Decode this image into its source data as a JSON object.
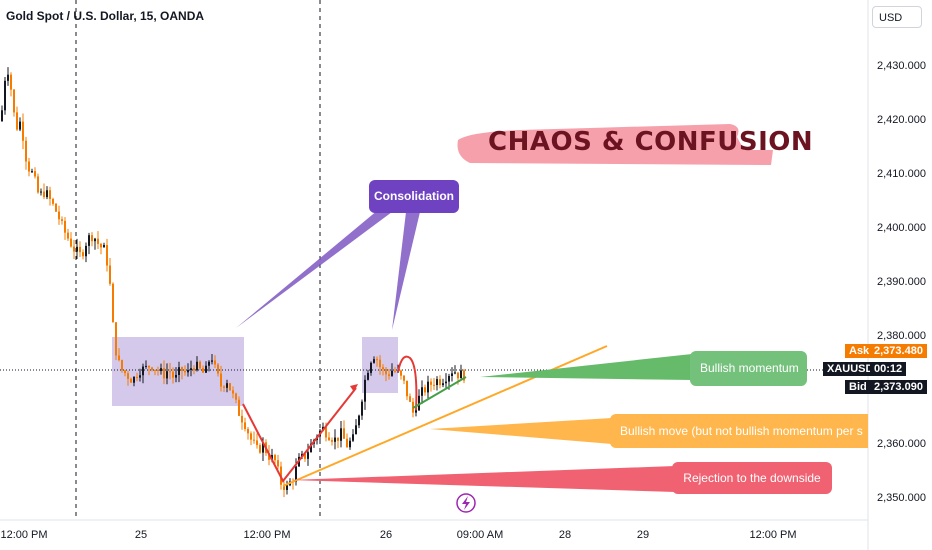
{
  "header": {
    "title": "Gold Spot / U.S. Dollar, 15, OANDA",
    "currency_button": "USD"
  },
  "price_scale": {
    "ticks": [
      "2,430.000",
      "2,420.000",
      "2,410.000",
      "2,400.000",
      "2,390.000",
      "2,380.000",
      "2,360.000",
      "2,350.000"
    ],
    "ask_label": "Ask",
    "ask_value": "2,373.480",
    "symbol_label": "XAUUSD",
    "countdown": "00:12",
    "bid_label": "Bid",
    "bid_value": "2,373.090",
    "colors": {
      "ask": "#f57c00",
      "bid": "#131722",
      "symbol": "#131722"
    }
  },
  "time_axis": {
    "ticks": [
      "12:00 PM",
      "25",
      "12:00 PM",
      "26",
      "09:00 AM",
      "28",
      "29",
      "12:00 PM"
    ]
  },
  "annotations": {
    "chaos_text": "CHAOS & CONFUSION",
    "consolidation": "Consolidation",
    "bullish_momentum": "Bullish momentum",
    "bullish_move": "Bullish move (but not bullish momentum per s",
    "rejection": "Rejection to the downside",
    "colors": {
      "consolidation": "#6f42c1",
      "momentum": "#66bb6a",
      "move": "#ffb74d",
      "rejection": "#f06272",
      "chaos_highlight": "#f48f9c"
    }
  },
  "chart_data": {
    "type": "candlestick",
    "symbol": "XAUUSD",
    "interval": "15",
    "ylim": [
      2346,
      2437
    ],
    "close_path": [
      [
        0,
        2420
      ],
      [
        4,
        2428
      ],
      [
        8,
        2430
      ],
      [
        12,
        2422
      ],
      [
        16,
        2419
      ],
      [
        20,
        2420
      ],
      [
        26,
        2412
      ],
      [
        32,
        2410
      ],
      [
        38,
        2406
      ],
      [
        44,
        2407
      ],
      [
        50,
        2405
      ],
      [
        56,
        2403
      ],
      [
        62,
        2400
      ],
      [
        68,
        2398
      ],
      [
        74,
        2396
      ],
      [
        80,
        2395
      ],
      [
        86,
        2398
      ],
      [
        92,
        2399
      ],
      [
        98,
        2397
      ],
      [
        104,
        2396
      ],
      [
        108,
        2392
      ],
      [
        112,
        2382
      ],
      [
        116,
        2376
      ],
      [
        120,
        2374
      ],
      [
        126,
        2373
      ],
      [
        132,
        2372
      ],
      [
        138,
        2374
      ],
      [
        144,
        2374
      ],
      [
        150,
        2375
      ],
      [
        156,
        2374
      ],
      [
        162,
        2373
      ],
      [
        168,
        2374
      ],
      [
        174,
        2372
      ],
      [
        180,
        2374
      ],
      [
        186,
        2373
      ],
      [
        192,
        2375
      ],
      [
        198,
        2374
      ],
      [
        204,
        2373
      ],
      [
        210,
        2377
      ],
      [
        214,
        2374
      ],
      [
        220,
        2371
      ],
      [
        226,
        2372
      ],
      [
        232,
        2369
      ],
      [
        238,
        2366
      ],
      [
        244,
        2364
      ],
      [
        250,
        2361
      ],
      [
        256,
        2359
      ],
      [
        262,
        2360
      ],
      [
        268,
        2358
      ],
      [
        274,
        2357
      ],
      [
        280,
        2353
      ],
      [
        286,
        2352
      ],
      [
        292,
        2354
      ],
      [
        298,
        2357
      ],
      [
        304,
        2358
      ],
      [
        310,
        2360
      ],
      [
        316,
        2362
      ],
      [
        322,
        2363
      ],
      [
        328,
        2362
      ],
      [
        334,
        2361
      ],
      [
        340,
        2362
      ],
      [
        346,
        2360
      ],
      [
        352,
        2361
      ],
      [
        356,
        2364
      ],
      [
        360,
        2368
      ],
      [
        364,
        2372
      ],
      [
        368,
        2375
      ],
      [
        372,
        2377
      ],
      [
        376,
        2376
      ],
      [
        380,
        2374
      ],
      [
        386,
        2373
      ],
      [
        392,
        2374
      ],
      [
        398,
        2373
      ],
      [
        404,
        2371
      ],
      [
        408,
        2368
      ],
      [
        412,
        2366
      ],
      [
        416,
        2368
      ],
      [
        422,
        2370
      ],
      [
        428,
        2371
      ],
      [
        434,
        2372
      ],
      [
        440,
        2372
      ],
      [
        446,
        2373
      ],
      [
        452,
        2374
      ],
      [
        458,
        2373
      ],
      [
        464,
        2373
      ]
    ]
  }
}
